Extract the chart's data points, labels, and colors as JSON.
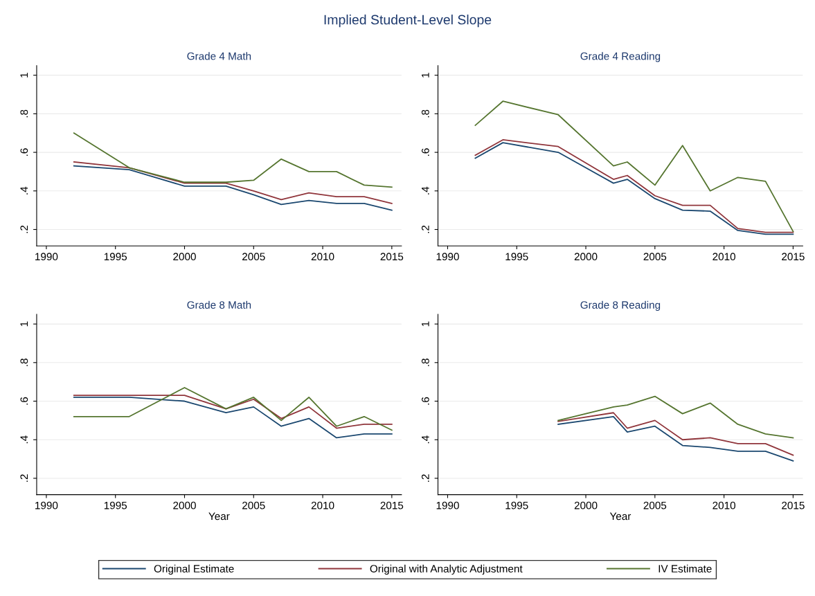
{
  "chart_data": [
    {
      "type": "line",
      "title": "Grade 4 Math",
      "annotations": [
        "Implied Student-Level Slope"
      ],
      "xlim": [
        1989.3,
        2015.7
      ],
      "ylim": [
        0.115,
        1.05
      ],
      "xticks": [
        1990,
        1995,
        2000,
        2005,
        2010,
        2015
      ],
      "yticks": [
        {
          "value": 0.2,
          "label": ".2"
        },
        {
          "value": 0.4,
          "label": ".4"
        },
        {
          "value": 0.6,
          "label": ".6"
        },
        {
          "value": 0.8,
          "label": ".8"
        },
        {
          "value": 1,
          "label": "1"
        }
      ],
      "grid": "y",
      "legend": "bottom",
      "x": [
        1992,
        1996,
        2000,
        2003,
        2005,
        2007,
        2009,
        2011,
        2013,
        2015
      ],
      "series": [
        {
          "name": "Original Estimate",
          "color": "#1a476f",
          "values": [
            0.53,
            0.51,
            0.425,
            0.425,
            0.38,
            0.33,
            0.35,
            0.335,
            0.335,
            0.3
          ]
        },
        {
          "name": "Original with Analytic Adjustment",
          "color": "#90353b",
          "values": [
            0.55,
            0.52,
            0.44,
            0.44,
            0.4,
            0.355,
            0.39,
            0.37,
            0.37,
            0.335
          ]
        },
        {
          "name": "IV Estimate",
          "color": "#55752f",
          "values": [
            0.7,
            0.52,
            0.445,
            0.445,
            0.455,
            0.565,
            0.5,
            0.5,
            0.43,
            0.42
          ]
        }
      ]
    },
    {
      "type": "line",
      "title": "Grade 4 Reading",
      "xlim": [
        1989.3,
        2015.7
      ],
      "ylim": [
        0.115,
        1.05
      ],
      "xticks": [
        1990,
        1995,
        2000,
        2005,
        2010,
        2015
      ],
      "yticks": [
        {
          "value": 0.2,
          "label": ".2"
        },
        {
          "value": 0.4,
          "label": ".4"
        },
        {
          "value": 0.6,
          "label": ".6"
        },
        {
          "value": 0.8,
          "label": ".8"
        },
        {
          "value": 1,
          "label": "1"
        }
      ],
      "grid": "y",
      "x": [
        1992,
        1994,
        1998,
        2002,
        2003,
        2005,
        2007,
        2009,
        2011,
        2013,
        2015
      ],
      "series": [
        {
          "color": "#1a476f",
          "values": [
            0.57,
            0.65,
            0.6,
            0.44,
            0.46,
            0.36,
            0.3,
            0.295,
            0.195,
            0.175,
            0.175
          ]
        },
        {
          "color": "#90353b",
          "values": [
            0.585,
            0.665,
            0.63,
            0.46,
            0.48,
            0.375,
            0.325,
            0.325,
            0.205,
            0.185,
            0.185
          ]
        },
        {
          "color": "#55752f",
          "values": [
            0.74,
            0.865,
            0.795,
            0.53,
            0.55,
            0.43,
            0.635,
            0.4,
            0.47,
            0.45,
            0.19
          ]
        }
      ]
    },
    {
      "type": "line",
      "title": "Grade 8 Math",
      "xlabel": "Year",
      "xlim": [
        1989.3,
        2015.7
      ],
      "ylim": [
        0.115,
        1.05
      ],
      "xticks": [
        1990,
        1995,
        2000,
        2005,
        2010,
        2015
      ],
      "yticks": [
        {
          "value": 0.2,
          "label": ".2"
        },
        {
          "value": 0.4,
          "label": ".4"
        },
        {
          "value": 0.6,
          "label": ".6"
        },
        {
          "value": 0.8,
          "label": ".8"
        },
        {
          "value": 1,
          "label": "1"
        }
      ],
      "grid": "y",
      "x": [
        1992,
        1996,
        2000,
        2003,
        2005,
        2007,
        2009,
        2011,
        2013,
        2015
      ],
      "series": [
        {
          "color": "#1a476f",
          "values": [
            0.62,
            0.62,
            0.6,
            0.54,
            0.57,
            0.47,
            0.51,
            0.41,
            0.43,
            0.43
          ]
        },
        {
          "color": "#90353b",
          "values": [
            0.63,
            0.63,
            0.63,
            0.56,
            0.61,
            0.51,
            0.57,
            0.46,
            0.48,
            0.48
          ]
        },
        {
          "color": "#55752f",
          "values": [
            0.52,
            0.52,
            0.67,
            0.56,
            0.62,
            0.5,
            0.62,
            0.47,
            0.52,
            0.45
          ]
        }
      ]
    },
    {
      "type": "line",
      "title": "Grade 8 Reading",
      "xlabel": "Year",
      "xlim": [
        1989.3,
        2015.7
      ],
      "ylim": [
        0.115,
        1.05
      ],
      "xticks": [
        1990,
        1995,
        2000,
        2005,
        2010,
        2015
      ],
      "yticks": [
        {
          "value": 0.2,
          "label": ".2"
        },
        {
          "value": 0.4,
          "label": ".4"
        },
        {
          "value": 0.6,
          "label": ".6"
        },
        {
          "value": 0.8,
          "label": ".8"
        },
        {
          "value": 1,
          "label": "1"
        }
      ],
      "grid": "y",
      "x": [
        1998,
        2002,
        2003,
        2005,
        2007,
        2009,
        2011,
        2013,
        2015
      ],
      "series": [
        {
          "color": "#1a476f",
          "values": [
            0.48,
            0.52,
            0.44,
            0.47,
            0.37,
            0.36,
            0.34,
            0.34,
            0.29
          ]
        },
        {
          "color": "#90353b",
          "values": [
            0.495,
            0.54,
            0.46,
            0.5,
            0.4,
            0.41,
            0.38,
            0.38,
            0.32
          ]
        },
        {
          "color": "#55752f",
          "values": [
            0.5,
            0.57,
            0.58,
            0.625,
            0.535,
            0.59,
            0.48,
            0.43,
            0.41
          ]
        }
      ]
    }
  ]
}
